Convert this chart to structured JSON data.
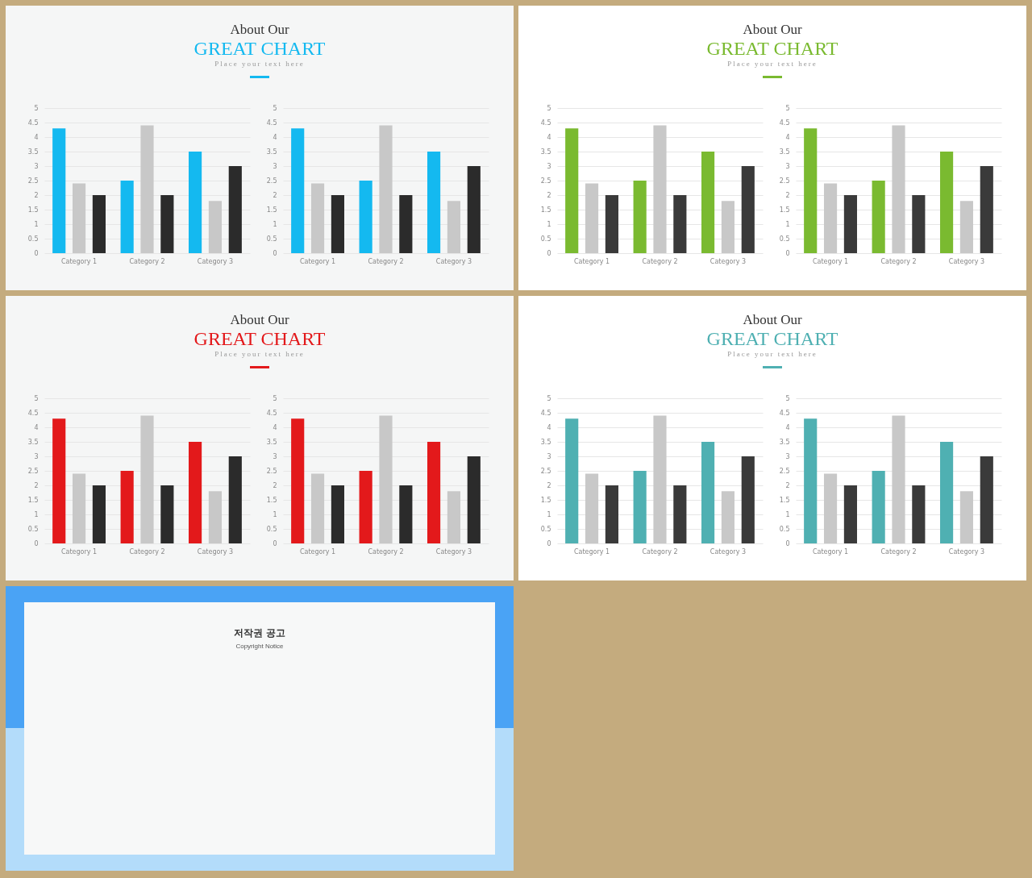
{
  "chart_data": [
    {
      "type": "bar",
      "title": "About Our",
      "subtitle": "GREAT CHART",
      "annotations": [
        "Place your text here"
      ],
      "categories": [
        "Category 1",
        "Category 2",
        "Category 3"
      ],
      "ylim": [
        0,
        5
      ],
      "yticks": [
        0,
        0.5,
        1,
        1.5,
        2,
        2.5,
        3,
        3.5,
        4,
        4.5,
        5
      ],
      "grid": "y",
      "series": [
        {
          "color": "#14b9f0",
          "values": [
            4.3,
            2.5,
            3.5
          ]
        },
        {
          "color": "#c8c8c8",
          "values": [
            2.4,
            4.4,
            1.8
          ]
        },
        {
          "color": "#2b2b2b",
          "values": [
            2,
            2,
            3
          ]
        }
      ]
    },
    {
      "type": "bar",
      "categories": [
        "Category 1",
        "Category 2",
        "Category 3"
      ],
      "ylim": [
        0,
        5
      ],
      "yticks": [
        0,
        0.5,
        1,
        1.5,
        2,
        2.5,
        3,
        3.5,
        4,
        4.5,
        5
      ],
      "grid": "y",
      "series": [
        {
          "color": "#14b9f0",
          "values": [
            4.3,
            2.5,
            3.5
          ]
        },
        {
          "color": "#c8c8c8",
          "values": [
            2.4,
            4.4,
            1.8
          ]
        },
        {
          "color": "#2b2b2b",
          "values": [
            2,
            2,
            3
          ]
        }
      ]
    },
    {
      "type": "bar",
      "title": "About Our",
      "subtitle": "GREAT CHART",
      "annotations": [
        "Place your text here"
      ],
      "categories": [
        "Category 1",
        "Category 2",
        "Category 3"
      ],
      "ylim": [
        0,
        5
      ],
      "yticks": [
        0,
        0.5,
        1,
        1.5,
        2,
        2.5,
        3,
        3.5,
        4,
        4.5,
        5
      ],
      "grid": "y",
      "series": [
        {
          "color": "#7aba30",
          "values": [
            4.3,
            2.5,
            3.5
          ]
        },
        {
          "color": "#c8c8c8",
          "values": [
            2.4,
            4.4,
            1.8
          ]
        },
        {
          "color": "#3a3a3a",
          "values": [
            2,
            2,
            3
          ]
        }
      ]
    },
    {
      "type": "bar",
      "categories": [
        "Category 1",
        "Category 2",
        "Category 3"
      ],
      "ylim": [
        0,
        5
      ],
      "yticks": [
        0,
        0.5,
        1,
        1.5,
        2,
        2.5,
        3,
        3.5,
        4,
        4.5,
        5
      ],
      "grid": "y",
      "series": [
        {
          "color": "#7aba30",
          "values": [
            4.3,
            2.5,
            3.5
          ]
        },
        {
          "color": "#c8c8c8",
          "values": [
            2.4,
            4.4,
            1.8
          ]
        },
        {
          "color": "#3a3a3a",
          "values": [
            2,
            2,
            3
          ]
        }
      ]
    },
    {
      "type": "bar",
      "title": "About Our",
      "subtitle": "GREAT CHART",
      "annotations": [
        "Place your text here"
      ],
      "categories": [
        "Category 1",
        "Category 2",
        "Category 3"
      ],
      "ylim": [
        0,
        5
      ],
      "yticks": [
        0,
        0.5,
        1,
        1.5,
        2,
        2.5,
        3,
        3.5,
        4,
        4.5,
        5
      ],
      "grid": "y",
      "series": [
        {
          "color": "#e3191b",
          "values": [
            4.3,
            2.5,
            3.5
          ]
        },
        {
          "color": "#c8c8c8",
          "values": [
            2.4,
            4.4,
            1.8
          ]
        },
        {
          "color": "#2b2b2b",
          "values": [
            2,
            2,
            3
          ]
        }
      ]
    },
    {
      "type": "bar",
      "categories": [
        "Category 1",
        "Category 2",
        "Category 3"
      ],
      "ylim": [
        0,
        5
      ],
      "yticks": [
        0,
        0.5,
        1,
        1.5,
        2,
        2.5,
        3,
        3.5,
        4,
        4.5,
        5
      ],
      "grid": "y",
      "series": [
        {
          "color": "#e3191b",
          "values": [
            4.3,
            2.5,
            3.5
          ]
        },
        {
          "color": "#c8c8c8",
          "values": [
            2.4,
            4.4,
            1.8
          ]
        },
        {
          "color": "#2b2b2b",
          "values": [
            2,
            2,
            3
          ]
        }
      ]
    },
    {
      "type": "bar",
      "title": "About Our",
      "subtitle": "GREAT CHART",
      "annotations": [
        "Place your text here"
      ],
      "categories": [
        "Category 1",
        "Category 2",
        "Category 3"
      ],
      "ylim": [
        0,
        5
      ],
      "yticks": [
        0,
        0.5,
        1,
        1.5,
        2,
        2.5,
        3,
        3.5,
        4,
        4.5,
        5
      ],
      "grid": "y",
      "series": [
        {
          "color": "#4fb0b2",
          "values": [
            4.3,
            2.5,
            3.5
          ]
        },
        {
          "color": "#c8c8c8",
          "values": [
            2.4,
            4.4,
            1.8
          ]
        },
        {
          "color": "#3a3a3a",
          "values": [
            2,
            2,
            3
          ]
        }
      ]
    },
    {
      "type": "bar",
      "categories": [
        "Category 1",
        "Category 2",
        "Category 3"
      ],
      "ylim": [
        0,
        5
      ],
      "yticks": [
        0,
        0.5,
        1,
        1.5,
        2,
        2.5,
        3,
        3.5,
        4,
        4.5,
        5
      ],
      "grid": "y",
      "series": [
        {
          "color": "#4fb0b2",
          "values": [
            4.3,
            2.5,
            3.5
          ]
        },
        {
          "color": "#c8c8c8",
          "values": [
            2.4,
            4.4,
            1.8
          ]
        },
        {
          "color": "#3a3a3a",
          "values": [
            2,
            2,
            3
          ]
        }
      ]
    },
    {
      "type": "other",
      "title": "저작권 공고",
      "subtitle": "Copyright Notice"
    }
  ]
}
